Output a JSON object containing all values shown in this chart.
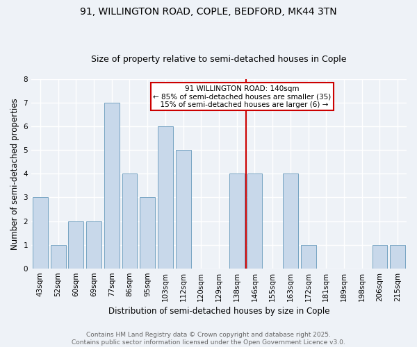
{
  "title": "91, WILLINGTON ROAD, COPLE, BEDFORD, MK44 3TN",
  "subtitle": "Size of property relative to semi-detached houses in Cople",
  "xlabel": "Distribution of semi-detached houses by size in Cople",
  "ylabel": "Number of semi-detached properties",
  "categories": [
    "43sqm",
    "52sqm",
    "60sqm",
    "69sqm",
    "77sqm",
    "86sqm",
    "95sqm",
    "103sqm",
    "112sqm",
    "120sqm",
    "129sqm",
    "138sqm",
    "146sqm",
    "155sqm",
    "163sqm",
    "172sqm",
    "181sqm",
    "189sqm",
    "198sqm",
    "206sqm",
    "215sqm"
  ],
  "values": [
    3,
    1,
    2,
    2,
    7,
    4,
    3,
    6,
    5,
    0,
    0,
    4,
    4,
    0,
    4,
    1,
    0,
    0,
    0,
    1,
    1
  ],
  "bar_color": "#c8d8ea",
  "bar_edge_color": "#6699bb",
  "background_color": "#eef2f7",
  "grid_color": "#ffffff",
  "subject_line_color": "#cc0000",
  "annotation_box_color": "#cc0000",
  "subject_percent_smaller": 85,
  "subject_count_smaller": 35,
  "subject_percent_larger": 15,
  "subject_count_larger": 6,
  "ylim": [
    0,
    8
  ],
  "yticks": [
    0,
    1,
    2,
    3,
    4,
    5,
    6,
    7,
    8
  ],
  "title_fontsize": 10,
  "subtitle_fontsize": 9,
  "axis_label_fontsize": 8.5,
  "tick_fontsize": 7.5,
  "annot_fontsize": 7.5,
  "footer_fontsize": 6.5,
  "footer_line1": "Contains HM Land Registry data © Crown copyright and database right 2025.",
  "footer_line2": "Contains public sector information licensed under the Open Government Licence v3.0."
}
